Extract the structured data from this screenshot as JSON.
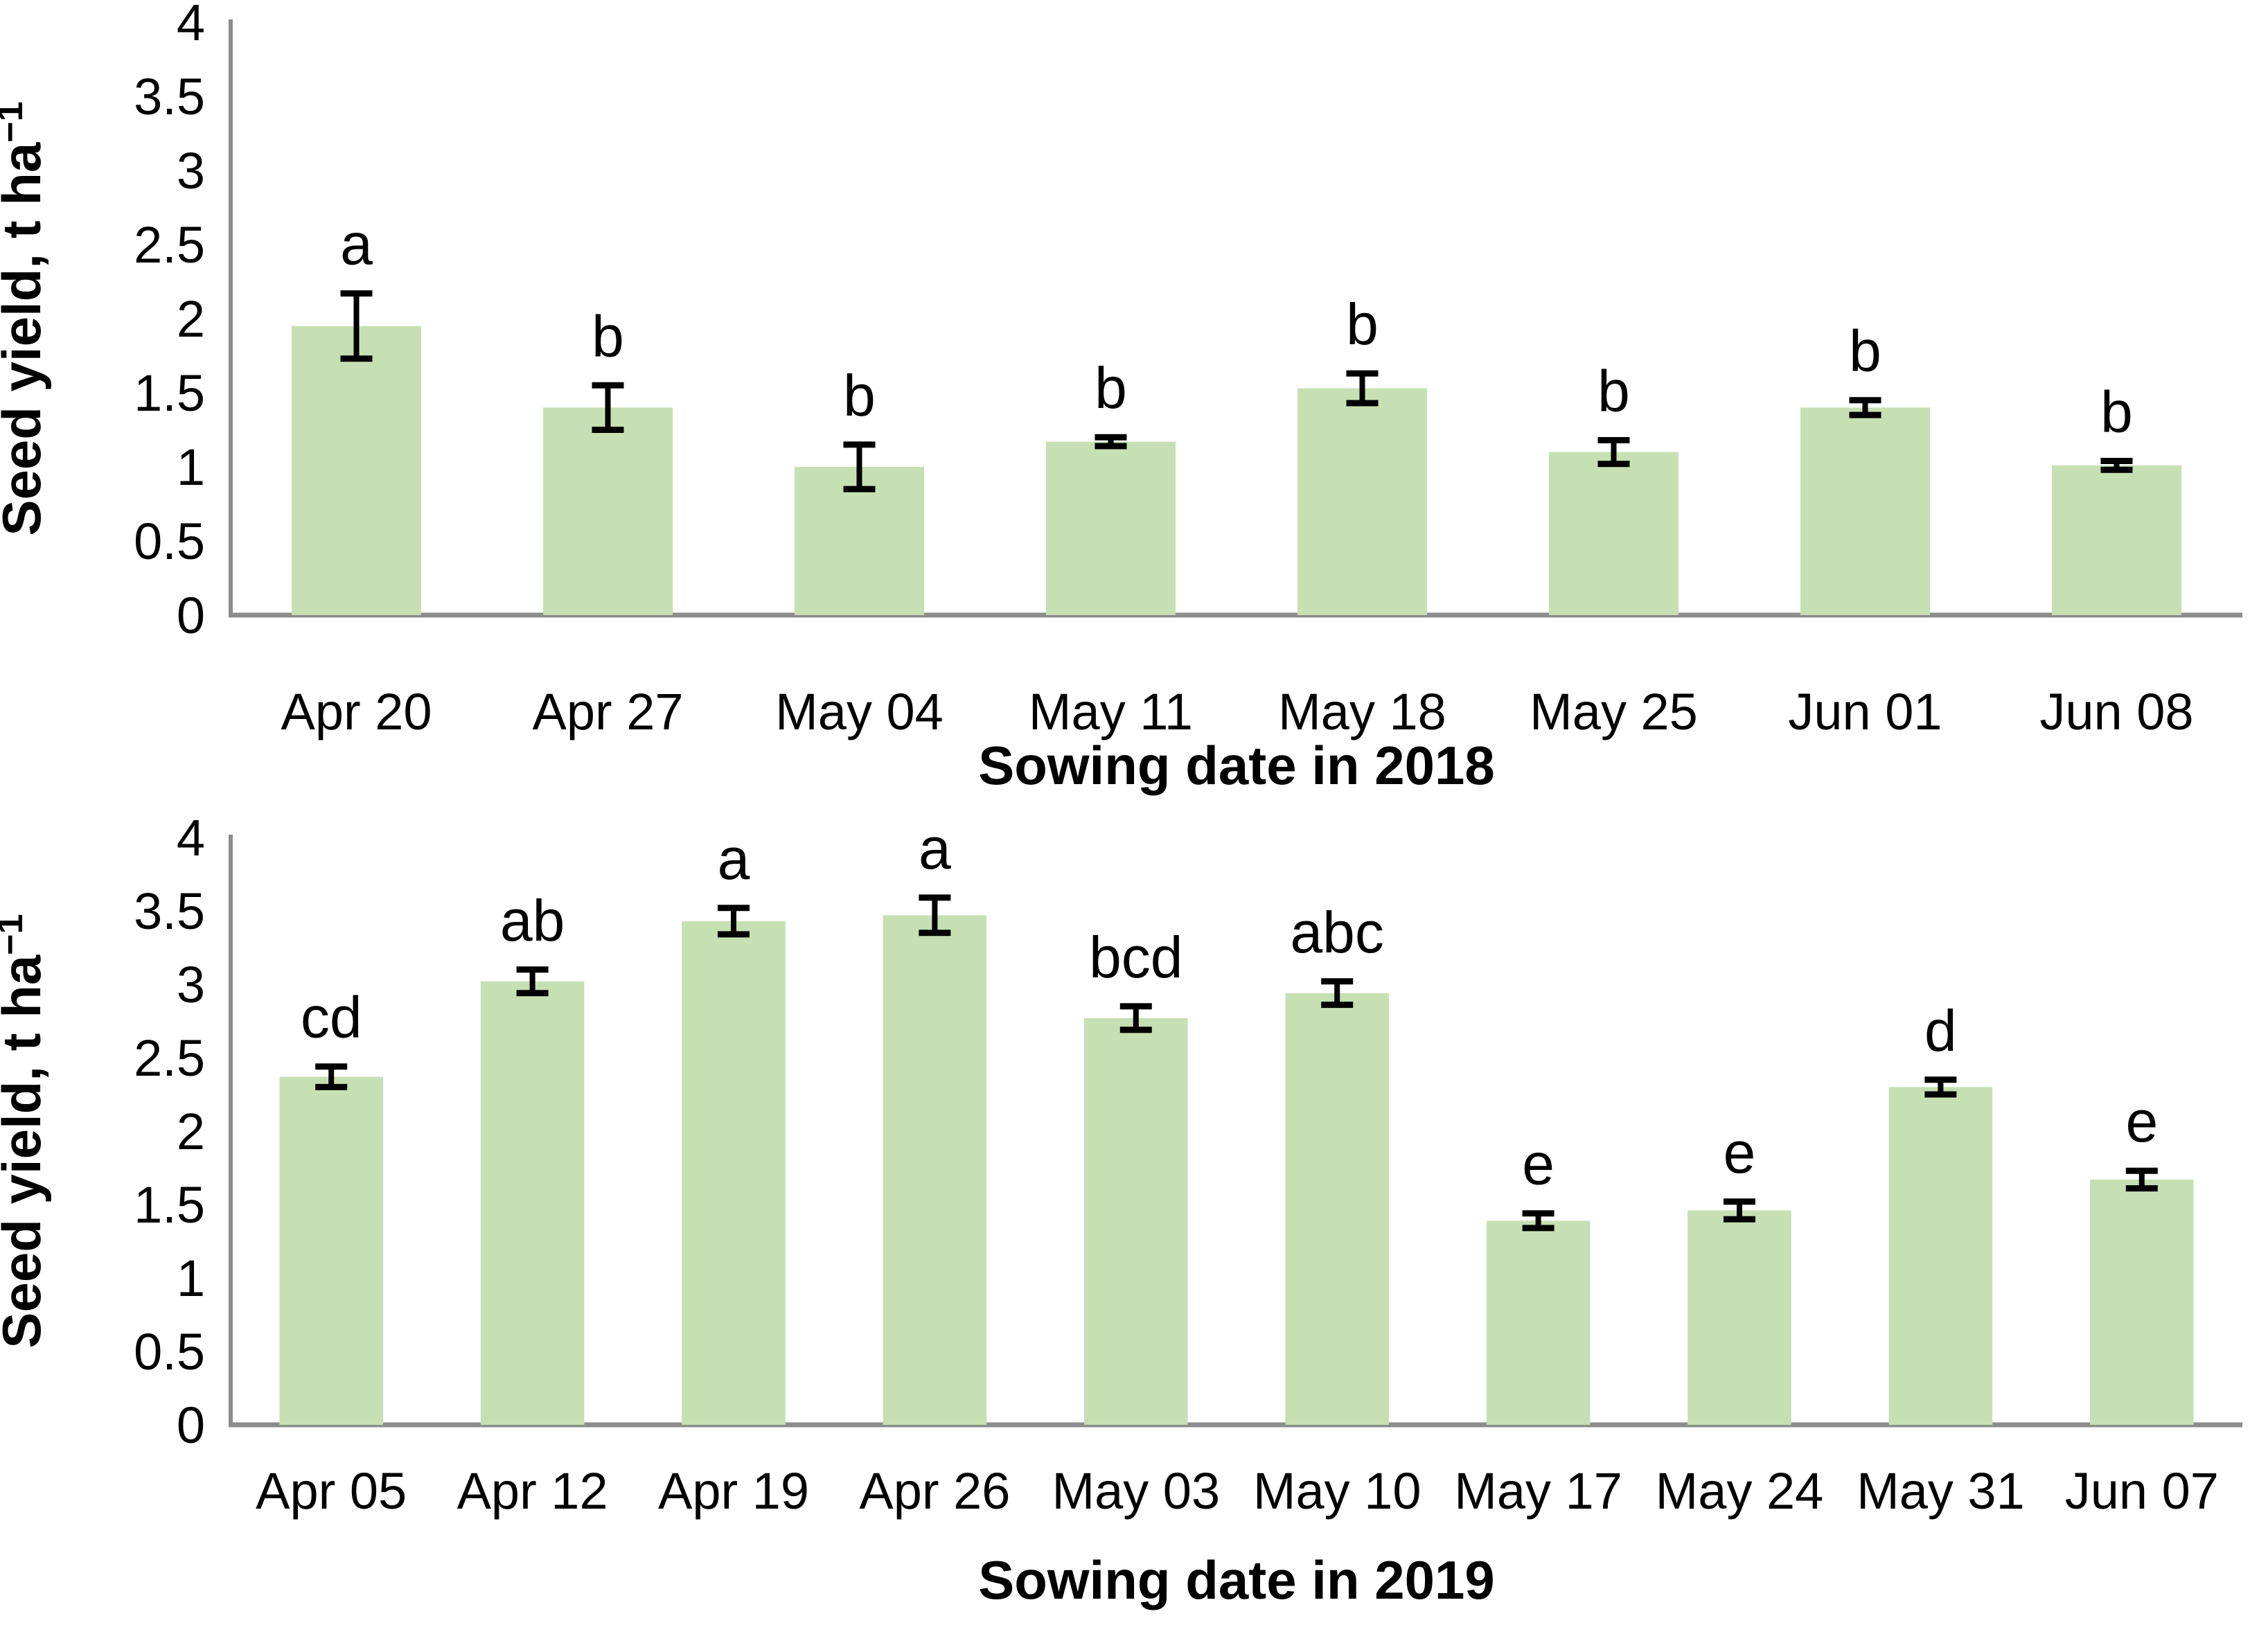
{
  "figure": {
    "background": "#ffffff",
    "description_text": ""
  },
  "colors": {
    "bar_fill": "#C6E0B4",
    "axis_line": "#8C8C8C",
    "error_bar": "#000000",
    "text": "#000000"
  },
  "chart_data": [
    {
      "type": "bar",
      "title": "",
      "xlabel": "Sowing date in 2018",
      "ylabel_main": "Seed yield, t ha",
      "ylabel_superscript": "−1",
      "ylim": [
        0,
        4
      ],
      "ytick_step": 0.5,
      "grid": false,
      "legend_position": "none",
      "categories": [
        "Apr 20",
        "Apr 27",
        "May 04",
        "May 11",
        "May 18",
        "May 25",
        "Jun 01",
        "Jun 08"
      ],
      "values": [
        1.95,
        1.4,
        1.0,
        1.17,
        1.53,
        1.1,
        1.4,
        1.01
      ],
      "errors": [
        0.22,
        0.15,
        0.15,
        0.03,
        0.1,
        0.08,
        0.05,
        0.03
      ],
      "sig_letters": [
        "a",
        "b",
        "b",
        "b",
        "b",
        "b",
        "b",
        "b"
      ]
    },
    {
      "type": "bar",
      "title": "",
      "xlabel": "Sowing date in 2019",
      "ylabel_main": "Seed yield, t ha",
      "ylabel_superscript": "−1",
      "ylim": [
        0,
        4
      ],
      "ytick_step": 0.5,
      "grid": false,
      "legend_position": "none",
      "categories": [
        "Apr 05",
        "Apr 12",
        "Apr 19",
        "Apr 26",
        "May 03",
        "May 10",
        "May 17",
        "May 24",
        "May 31",
        "Jun 07"
      ],
      "values": [
        2.37,
        3.02,
        3.43,
        3.47,
        2.77,
        2.94,
        1.39,
        1.46,
        2.3,
        1.67
      ],
      "errors": [
        0.07,
        0.08,
        0.09,
        0.12,
        0.08,
        0.08,
        0.05,
        0.06,
        0.05,
        0.06
      ],
      "sig_letters": [
        "cd",
        "ab",
        "a",
        "a",
        "bcd",
        "abc",
        "e",
        "e",
        "d",
        "e"
      ]
    }
  ]
}
